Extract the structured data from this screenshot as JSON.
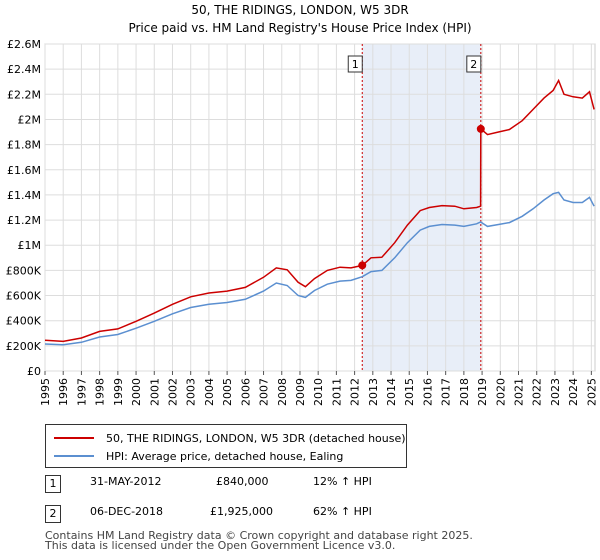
{
  "chart_data": {
    "type": "line",
    "title": "50, THE RIDINGS, LONDON, W5 3DR",
    "subtitle": "Price paid vs. HM Land Registry's House Price Index (HPI)",
    "x_range": [
      1995,
      2025.2
    ],
    "ylim": [
      0,
      2600000
    ],
    "y_ticks": [
      {
        "value": 0,
        "label": "£0"
      },
      {
        "value": 200000,
        "label": "£200K"
      },
      {
        "value": 400000,
        "label": "£400K"
      },
      {
        "value": 600000,
        "label": "£600K"
      },
      {
        "value": 800000,
        "label": "£800K"
      },
      {
        "value": 1000000,
        "label": "£1M"
      },
      {
        "value": 1200000,
        "label": "£1.2M"
      },
      {
        "value": 1400000,
        "label": "£1.4M"
      },
      {
        "value": 1600000,
        "label": "£1.6M"
      },
      {
        "value": 1800000,
        "label": "£1.8M"
      },
      {
        "value": 2000000,
        "label": "£2M"
      },
      {
        "value": 2200000,
        "label": "£2.2M"
      },
      {
        "value": 2400000,
        "label": "£2.4M"
      },
      {
        "value": 2600000,
        "label": "£2.6M"
      }
    ],
    "x_ticks": [
      "1995",
      "1996",
      "1997",
      "1998",
      "1999",
      "2000",
      "2001",
      "2002",
      "2003",
      "2004",
      "2005",
      "2006",
      "2007",
      "2008",
      "2009",
      "2010",
      "2011",
      "2012",
      "2013",
      "2014",
      "2015",
      "2016",
      "2017",
      "2018",
      "2019",
      "2020",
      "2021",
      "2022",
      "2023",
      "2024",
      "2025"
    ],
    "series": [
      {
        "name": "50, THE RIDINGS, LONDON, W5 3DR (detached house)",
        "color": "#cc0000",
        "points": [
          [
            1995,
            245000
          ],
          [
            1996,
            235000
          ],
          [
            1997,
            262000
          ],
          [
            1998,
            315000
          ],
          [
            1999,
            335000
          ],
          [
            2000,
            395000
          ],
          [
            2001,
            460000
          ],
          [
            2002,
            530000
          ],
          [
            2003,
            590000
          ],
          [
            2004,
            620000
          ],
          [
            2005,
            635000
          ],
          [
            2006,
            665000
          ],
          [
            2007,
            745000
          ],
          [
            2007.7,
            820000
          ],
          [
            2008.3,
            805000
          ],
          [
            2008.9,
            705000
          ],
          [
            2009.3,
            670000
          ],
          [
            2009.8,
            735000
          ],
          [
            2010.5,
            800000
          ],
          [
            2011.2,
            825000
          ],
          [
            2011.8,
            820000
          ],
          [
            2012.42,
            840000
          ],
          [
            2012.9,
            900000
          ],
          [
            2013.5,
            905000
          ],
          [
            2014.2,
            1020000
          ],
          [
            2014.9,
            1160000
          ],
          [
            2015.6,
            1275000
          ],
          [
            2016.1,
            1300000
          ],
          [
            2016.8,
            1315000
          ],
          [
            2017.5,
            1310000
          ],
          [
            2018.0,
            1290000
          ],
          [
            2018.7,
            1300000
          ],
          [
            2018.92,
            1310000
          ],
          [
            2018.93,
            1925000
          ],
          [
            2019.3,
            1880000
          ],
          [
            2019.9,
            1900000
          ],
          [
            2020.5,
            1920000
          ],
          [
            2021.2,
            1990000
          ],
          [
            2021.8,
            2080000
          ],
          [
            2022.4,
            2170000
          ],
          [
            2022.9,
            2230000
          ],
          [
            2023.2,
            2310000
          ],
          [
            2023.5,
            2200000
          ],
          [
            2024.0,
            2180000
          ],
          [
            2024.5,
            2170000
          ],
          [
            2024.9,
            2220000
          ],
          [
            2025.15,
            2080000
          ]
        ]
      },
      {
        "name": "HPI: Average price, detached house, Ealing",
        "color": "#5b8fd0",
        "points": [
          [
            1995,
            215000
          ],
          [
            1996,
            208000
          ],
          [
            1997,
            228000
          ],
          [
            1998,
            270000
          ],
          [
            1999,
            290000
          ],
          [
            2000,
            340000
          ],
          [
            2001,
            395000
          ],
          [
            2002,
            455000
          ],
          [
            2003,
            505000
          ],
          [
            2004,
            530000
          ],
          [
            2005,
            545000
          ],
          [
            2006,
            570000
          ],
          [
            2007,
            635000
          ],
          [
            2007.7,
            700000
          ],
          [
            2008.3,
            680000
          ],
          [
            2008.9,
            600000
          ],
          [
            2009.3,
            585000
          ],
          [
            2009.8,
            640000
          ],
          [
            2010.5,
            690000
          ],
          [
            2011.2,
            715000
          ],
          [
            2011.8,
            720000
          ],
          [
            2012.42,
            750000
          ],
          [
            2012.9,
            790000
          ],
          [
            2013.5,
            800000
          ],
          [
            2014.2,
            900000
          ],
          [
            2014.9,
            1020000
          ],
          [
            2015.6,
            1120000
          ],
          [
            2016.1,
            1150000
          ],
          [
            2016.8,
            1165000
          ],
          [
            2017.5,
            1160000
          ],
          [
            2018.0,
            1150000
          ],
          [
            2018.7,
            1170000
          ],
          [
            2018.92,
            1185000
          ],
          [
            2019.3,
            1150000
          ],
          [
            2019.9,
            1165000
          ],
          [
            2020.5,
            1180000
          ],
          [
            2021.2,
            1230000
          ],
          [
            2021.8,
            1290000
          ],
          [
            2022.4,
            1360000
          ],
          [
            2022.9,
            1410000
          ],
          [
            2023.2,
            1420000
          ],
          [
            2023.5,
            1360000
          ],
          [
            2024.0,
            1340000
          ],
          [
            2024.5,
            1340000
          ],
          [
            2024.9,
            1380000
          ],
          [
            2025.15,
            1310000
          ]
        ]
      }
    ],
    "markers": [
      {
        "label": "1",
        "x": 2012.42,
        "y": 840000
      },
      {
        "label": "2",
        "x": 2018.93,
        "y": 1925000
      }
    ],
    "shaded_region": [
      2012.42,
      2018.93
    ]
  },
  "legend": [
    {
      "label": "50, THE RIDINGS, LONDON, W5 3DR (detached house)",
      "color": "#cc0000"
    },
    {
      "label": "HPI: Average price, detached house, Ealing",
      "color": "#5b8fd0"
    }
  ],
  "transactions": [
    {
      "num": "1",
      "date": "31-MAY-2012",
      "price": "£840,000",
      "hpi": "12% ↑ HPI"
    },
    {
      "num": "2",
      "date": "06-DEC-2018",
      "price": "£1,925,000",
      "hpi": "62% ↑ HPI"
    }
  ],
  "footer": {
    "line1": "Contains HM Land Registry data © Crown copyright and database right 2025.",
    "line2": "This data is licensed under the Open Government Licence v3.0."
  }
}
